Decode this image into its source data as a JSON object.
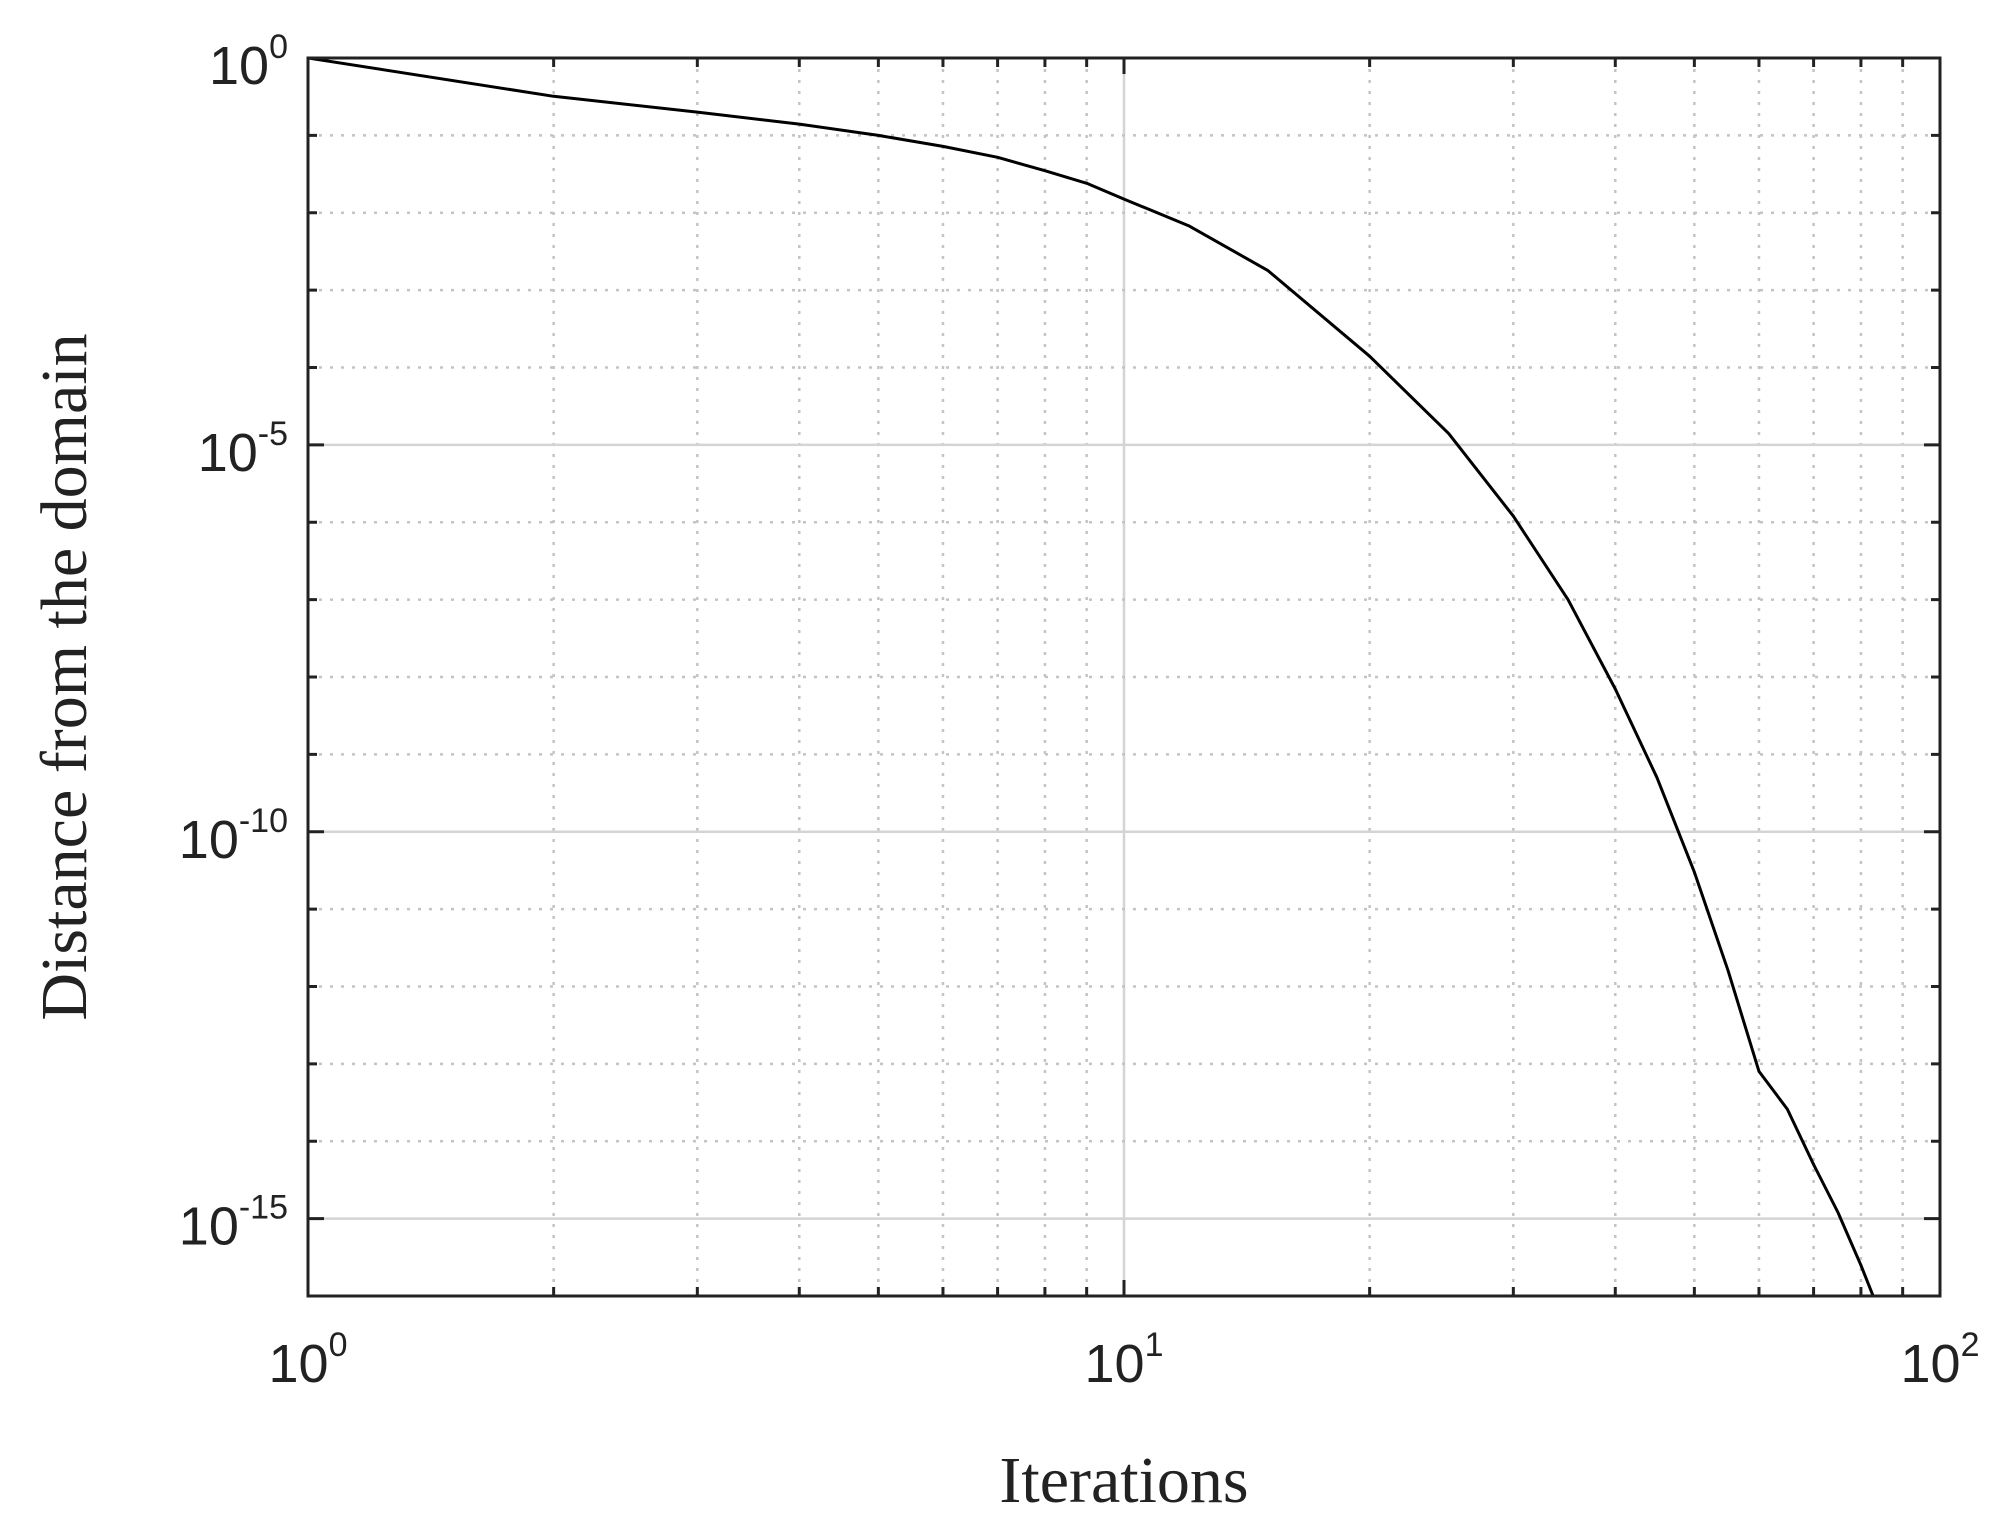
{
  "chart_data": {
    "type": "line",
    "title": "",
    "xlabel": "Iterations",
    "ylabel": "Distance from  the domain",
    "xscale": "log",
    "yscale": "log",
    "xlim": [
      1,
      100
    ],
    "ylim": [
      1e-16,
      1
    ],
    "grid": true,
    "legend": "none",
    "x_ticks": [
      {
        "base": "10",
        "exp": "0",
        "value": 1
      },
      {
        "base": "10",
        "exp": "1",
        "value": 10
      },
      {
        "base": "10",
        "exp": "2",
        "value": 100
      }
    ],
    "y_ticks": [
      {
        "base": "10",
        "exp": "0",
        "value": 1
      },
      {
        "base": "10",
        "exp": "-5",
        "value": 1e-05
      },
      {
        "base": "10",
        "exp": "-10",
        "value": 1e-10
      },
      {
        "base": "10",
        "exp": "-15",
        "value": 1e-15
      }
    ],
    "series": [
      {
        "color": "#000000",
        "x": [
          1,
          2,
          3,
          4,
          5,
          6,
          7,
          8,
          9,
          10,
          12,
          15,
          20,
          25,
          30,
          35,
          40,
          45,
          50,
          55,
          60,
          65,
          70,
          75,
          80,
          85,
          87,
          88,
          89
        ],
        "y": [
          1,
          0.32,
          0.2,
          0.14,
          0.1,
          0.072,
          0.052,
          0.035,
          0.024,
          0.015,
          0.0068,
          0.0018,
          0.00014,
          1.4e-05,
          1.2e-06,
          1e-07,
          7e-09,
          5e-10,
          3e-11,
          1.6e-12,
          8e-14,
          2.6e-14,
          5e-15,
          1.2e-15,
          2.5e-16,
          5e-17,
          3e-17,
          1.5e-17,
          1e-16
        ]
      }
    ]
  }
}
